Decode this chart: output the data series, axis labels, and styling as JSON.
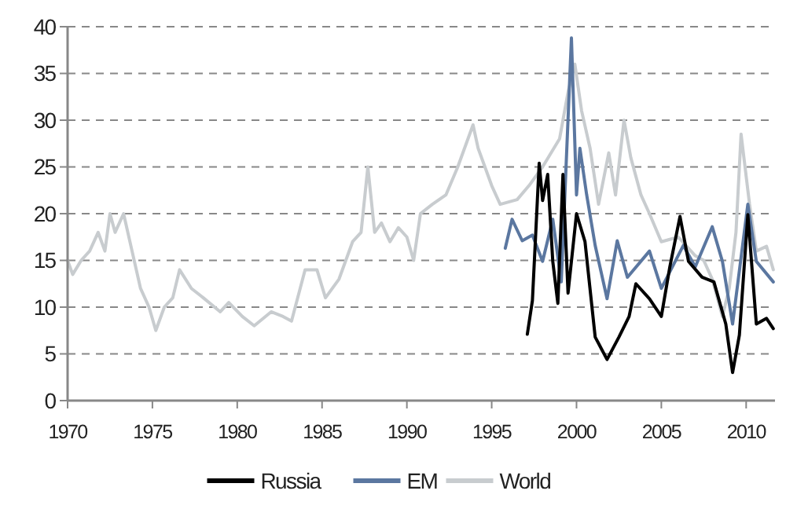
{
  "chart_data": {
    "type": "line",
    "xlim": [
      1970,
      2011.7
    ],
    "xticks": [
      1970,
      1975,
      1980,
      1985,
      1990,
      1995,
      2000,
      2005,
      2010
    ],
    "ylim": [
      0,
      40
    ],
    "yticks": [
      0,
      5,
      10,
      15,
      20,
      25,
      30,
      35,
      40
    ],
    "grid": "y",
    "legend": "bottom",
    "series": [
      {
        "name": "Russia",
        "color": "#000000",
        "x": [
          1997.1,
          1997.4,
          1997.8,
          1998.0,
          1998.3,
          1998.6,
          1998.9,
          1999.2,
          1999.5,
          2000.0,
          2000.5,
          2001.1,
          2001.8,
          2002.5,
          2003.1,
          2003.5,
          2004.3,
          2005.0,
          2005.5,
          2006.1,
          2006.6,
          2007.4,
          2008.1,
          2008.8,
          2009.2,
          2009.6,
          2010.1,
          2010.6,
          2011.2,
          2011.6
        ],
        "values": [
          7.1,
          10.7,
          25.4,
          21.4,
          24.2,
          14.9,
          10.4,
          24.2,
          11.5,
          20,
          17,
          6.8,
          4.4,
          6.8,
          9,
          12.5,
          10.9,
          9,
          14.3,
          19.7,
          14.9,
          13.2,
          12.7,
          8.2,
          3,
          7,
          19.9,
          8.2,
          8.8,
          7.7
        ]
      },
      {
        "name": "EM",
        "color": "#5b77a0",
        "x": [
          1995.8,
          1996.2,
          1996.8,
          1997.4,
          1998.0,
          1998.6,
          1999.1,
          1999.7,
          2000.0,
          2000.2,
          2000.6,
          2001.1,
          2001.8,
          2002.4,
          2003.0,
          2004.3,
          2005.0,
          2006.3,
          2007.0,
          2008.0,
          2008.6,
          2009.2,
          2010.1,
          2010.6,
          2011.6
        ],
        "values": [
          16.3,
          19.4,
          17.1,
          17.7,
          14.9,
          19.4,
          12.7,
          38.8,
          22,
          27,
          22,
          16.6,
          10.9,
          17.1,
          13.2,
          16,
          12,
          16.6,
          14.3,
          18.6,
          14.9,
          8.2,
          21,
          14.9,
          12.7
        ]
      },
      {
        "name": "World",
        "color": "#c8cccf",
        "x": [
          1970,
          1970.3,
          1970.8,
          1971.3,
          1971.8,
          1972.2,
          1972.5,
          1972.8,
          1973.3,
          1973.8,
          1974.3,
          1974.8,
          1975.2,
          1975.7,
          1976.2,
          1976.6,
          1977.3,
          1978,
          1979,
          1979.5,
          1980.3,
          1981,
          1982,
          1982.7,
          1983.2,
          1984,
          1984.7,
          1985.2,
          1986,
          1986.8,
          1987.3,
          1987.7,
          1988.1,
          1988.5,
          1989,
          1989.5,
          1990,
          1990.4,
          1990.8,
          1991.5,
          1992.3,
          1993,
          1993.9,
          1994.2,
          1995,
          1995.5,
          1996.5,
          1997.2,
          1998,
          1999,
          1999.5,
          1999.9,
          2000.3,
          2000.8,
          2001.3,
          2001.9,
          2002.3,
          2002.8,
          2003.2,
          2003.8,
          2004.3,
          2005,
          2006,
          2007,
          2007.5,
          2008,
          2008.6,
          2009,
          2009.4,
          2009.7,
          2010.2,
          2010.6,
          2011.2,
          2011.6
        ],
        "values": [
          15,
          13.5,
          15,
          16,
          18,
          16,
          20,
          18,
          20,
          16,
          12,
          10,
          7.5,
          10,
          11,
          14,
          12,
          11,
          9.5,
          10.5,
          9,
          8,
          9.5,
          9,
          8.5,
          14,
          14,
          11,
          13,
          17,
          18,
          25,
          18,
          19,
          17,
          18.5,
          17.5,
          15,
          20,
          21,
          22,
          25,
          29.5,
          27,
          23,
          21,
          21.5,
          23,
          25,
          28,
          33,
          36,
          31,
          27,
          21,
          26.5,
          22,
          30,
          26,
          22,
          20,
          17,
          17.5,
          15.5,
          15,
          13,
          9,
          12,
          18,
          28.5,
          21,
          16,
          16.5,
          14
        ]
      }
    ]
  }
}
